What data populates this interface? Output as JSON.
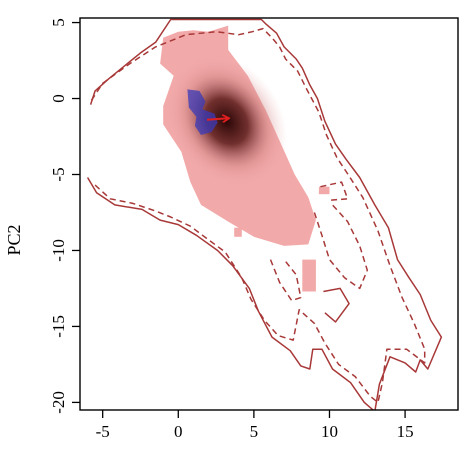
{
  "chart_data": {
    "type": "heatmap",
    "title": "",
    "xlabel": "",
    "ylabel": "PC2",
    "xlim": [
      -6.5,
      18.5
    ],
    "ylim": [
      -20.5,
      5.3
    ],
    "x_ticks": [
      -5,
      0,
      5,
      10,
      15
    ],
    "y_ticks": [
      5,
      0,
      -5,
      -10,
      -15,
      -20
    ],
    "x_tick_labels": [
      "-5",
      "0",
      "5",
      "10",
      "15"
    ],
    "y_tick_labels": [
      "5",
      "0",
      "-5",
      "-10",
      "-15",
      "-20"
    ],
    "grid": false,
    "density_region": {
      "color": "#f2a9a9",
      "outline": [
        [
          -1,
          4
        ],
        [
          0,
          4.4
        ],
        [
          1,
          4.5
        ],
        [
          2,
          4.4
        ],
        [
          3.3,
          4.8
        ],
        [
          3.3,
          3.2
        ],
        [
          4.6,
          1.5
        ],
        [
          5.8,
          -0.8
        ],
        [
          6.8,
          -3
        ],
        [
          7.7,
          -5
        ],
        [
          8.6,
          -6.5
        ],
        [
          9.1,
          -8
        ],
        [
          8.6,
          -9.6
        ],
        [
          7,
          -9.7
        ],
        [
          5,
          -9.1
        ],
        [
          3.3,
          -8.1
        ],
        [
          1.5,
          -7
        ],
        [
          0.8,
          -5.5
        ],
        [
          0.2,
          -3.5
        ],
        [
          -1,
          -1.7
        ],
        [
          -1,
          -0.5
        ],
        [
          -0.3,
          1.5
        ],
        [
          -1.2,
          2.3
        ]
      ],
      "islands": [
        [
          [
            8.2,
            -10.6
          ],
          [
            9.1,
            -10.6
          ],
          [
            9.1,
            -12.7
          ],
          [
            8.2,
            -12.7
          ]
        ],
        [
          [
            3.7,
            -8.5
          ],
          [
            4.2,
            -8.5
          ],
          [
            4.2,
            -9.1
          ],
          [
            3.7,
            -9.1
          ]
        ],
        [
          [
            9.3,
            -5.8
          ],
          [
            10,
            -5.8
          ],
          [
            10,
            -6.3
          ],
          [
            9.3,
            -6.3
          ]
        ]
      ]
    },
    "density_peak": {
      "x": 3.2,
      "y": -1.5,
      "color": "#2a0606"
    },
    "blue_region": {
      "color": "#3a3ab8",
      "outline": [
        [
          0.6,
          0.6
        ],
        [
          1.4,
          0.5
        ],
        [
          1.8,
          -0.2
        ],
        [
          1.6,
          -0.7
        ],
        [
          2.4,
          -1
        ],
        [
          2.6,
          -1.6
        ],
        [
          2.2,
          -2.2
        ],
        [
          1.5,
          -2.4
        ],
        [
          1.1,
          -1.8
        ],
        [
          1.2,
          -1.2
        ],
        [
          0.7,
          -0.6
        ]
      ]
    },
    "arrow": {
      "from": [
        1.9,
        -1.4
      ],
      "to": [
        3.3,
        -1.3
      ],
      "color": "#e02020"
    },
    "contours": [
      {
        "style": "solid",
        "color": "#a83838",
        "points": [
          [
            -6,
            -5.2
          ],
          [
            -5.4,
            -6.2
          ],
          [
            -4.2,
            -7
          ],
          [
            -2.4,
            -7.3
          ],
          [
            -1.2,
            -8
          ],
          [
            0,
            -8.3
          ],
          [
            1.2,
            -9
          ],
          [
            2.6,
            -10
          ],
          [
            3.6,
            -11
          ],
          [
            4.7,
            -12.5
          ],
          [
            5.3,
            -14
          ],
          [
            6.2,
            -15.7
          ],
          [
            7.4,
            -16.6
          ],
          [
            8.1,
            -17.6
          ],
          [
            8.7,
            -17.8
          ],
          [
            8.9,
            -16.5
          ],
          [
            9.5,
            -16.5
          ],
          [
            10.2,
            -17.8
          ],
          [
            11.4,
            -18.7
          ],
          [
            12.3,
            -20
          ],
          [
            13,
            -20.6
          ],
          [
            13.3,
            -18.8
          ],
          [
            14,
            -17
          ],
          [
            15,
            -17.4
          ],
          [
            15.7,
            -18
          ],
          [
            16,
            -17.2
          ],
          [
            16.5,
            -17.8
          ],
          [
            17.4,
            -15.7
          ],
          [
            16.7,
            -14.6
          ],
          [
            16,
            -12.9
          ],
          [
            15.2,
            -11.7
          ],
          [
            14.5,
            -10.6
          ],
          [
            13.9,
            -8.5
          ],
          [
            13,
            -7
          ],
          [
            12,
            -5.2
          ],
          [
            11.1,
            -4
          ],
          [
            10.4,
            -3
          ],
          [
            9.7,
            -1.5
          ],
          [
            9.2,
            0
          ],
          [
            8.7,
            0.9
          ],
          [
            8.2,
            2
          ],
          [
            7.8,
            2.6
          ],
          [
            7,
            3.4
          ],
          [
            6.5,
            4.3
          ],
          [
            5.8,
            4.9
          ],
          [
            5.5,
            5.2
          ],
          [
            -0.5,
            5.2
          ],
          [
            -1.5,
            3.7
          ],
          [
            -2.5,
            3
          ],
          [
            -4.6,
            1.3
          ],
          [
            -5.5,
            0.5
          ],
          [
            -5.8,
            -0.4
          ]
        ]
      },
      {
        "style": "dashed",
        "color": "#a83838",
        "points": [
          [
            -5.5,
            -5.7
          ],
          [
            -4.5,
            -6.6
          ],
          [
            -3,
            -6.9
          ],
          [
            -1.5,
            -7.4
          ],
          [
            -0.5,
            -7.8
          ],
          [
            0.8,
            -8.4
          ],
          [
            2,
            -9.3
          ],
          [
            3.1,
            -10.1
          ],
          [
            4.2,
            -11.8
          ],
          [
            4.8,
            -13.2
          ],
          [
            5.7,
            -14.6
          ],
          [
            6.6,
            -15.6
          ],
          [
            7.6,
            -15.9
          ],
          [
            8,
            -13.9
          ],
          [
            9,
            -14.8
          ],
          [
            9.7,
            -16.1
          ],
          [
            10.6,
            -17.5
          ],
          [
            11.7,
            -18.3
          ],
          [
            12.7,
            -19.6
          ],
          [
            13.2,
            -20
          ],
          [
            13.5,
            -18.7
          ],
          [
            13.8,
            -16.5
          ],
          [
            15.1,
            -16.5
          ],
          [
            16.3,
            -17.4
          ],
          [
            16.3,
            -16.5
          ],
          [
            15.6,
            -14.8
          ],
          [
            14.8,
            -13.1
          ],
          [
            14,
            -11
          ],
          [
            13.2,
            -8.7
          ],
          [
            12.2,
            -6.5
          ],
          [
            11.3,
            -5.1
          ],
          [
            10.5,
            -3.9
          ],
          [
            9.8,
            -2.4
          ],
          [
            9.3,
            -0.9
          ],
          [
            8.5,
            0.6
          ],
          [
            7.9,
            1.8
          ],
          [
            7.1,
            2.6
          ],
          [
            6.7,
            3.4
          ],
          [
            6.2,
            4
          ],
          [
            5.6,
            4.6
          ],
          [
            4.9,
            4.4
          ],
          [
            4,
            4.2
          ],
          [
            2.5,
            4.4
          ],
          [
            0.5,
            4.2
          ],
          [
            -1.5,
            3.4
          ],
          [
            -3.2,
            2.3
          ],
          [
            -5,
            1
          ],
          [
            -5.8,
            -0.2
          ]
        ]
      },
      {
        "style": "dashed",
        "color": "#a83838",
        "points": [
          [
            9,
            -7.5
          ],
          [
            9.5,
            -9
          ],
          [
            10,
            -10.6
          ],
          [
            11,
            -11.8
          ],
          [
            12,
            -12.5
          ],
          [
            12.5,
            -11.3
          ],
          [
            12,
            -9.7
          ],
          [
            11.2,
            -8.1
          ],
          [
            10.2,
            -7
          ]
        ]
      },
      {
        "style": "dashed",
        "color": "#a83838",
        "points": [
          [
            6.1,
            -10.6
          ],
          [
            6.7,
            -12.1
          ],
          [
            7.5,
            -13.3
          ],
          [
            8.1,
            -13.1
          ],
          [
            7.8,
            -11.6
          ],
          [
            7,
            -10.6
          ]
        ]
      },
      {
        "style": "dashed",
        "color": "#a83838",
        "points": [
          [
            9.4,
            -5.8
          ],
          [
            10.8,
            -5.5
          ],
          [
            11.2,
            -6.6
          ],
          [
            10,
            -6.7
          ]
        ]
      },
      {
        "style": "solid",
        "color": "#a83838",
        "points": [
          [
            9.6,
            -12.7
          ],
          [
            10.7,
            -12.5
          ],
          [
            11.3,
            -13.5
          ],
          [
            10.4,
            -14.7
          ],
          [
            9.7,
            -14.1
          ]
        ]
      }
    ]
  }
}
